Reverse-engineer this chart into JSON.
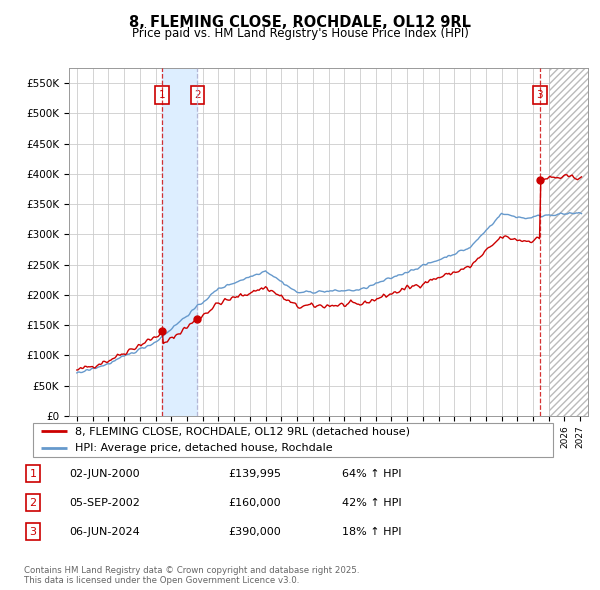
{
  "title": "8, FLEMING CLOSE, ROCHDALE, OL12 9RL",
  "subtitle": "Price paid vs. HM Land Registry's House Price Index (HPI)",
  "ylabel_ticks": [
    "£0",
    "£50K",
    "£100K",
    "£150K",
    "£200K",
    "£250K",
    "£300K",
    "£350K",
    "£400K",
    "£450K",
    "£500K",
    "£550K"
  ],
  "ytick_values": [
    0,
    50000,
    100000,
    150000,
    200000,
    250000,
    300000,
    350000,
    400000,
    450000,
    500000,
    550000
  ],
  "xlim": [
    1994.5,
    2027.5
  ],
  "ylim": [
    0,
    575000
  ],
  "sale1_date": 2000.42,
  "sale2_date": 2002.67,
  "sale3_date": 2024.42,
  "sale1_price": 139995,
  "sale2_price": 160000,
  "sale3_price": 390000,
  "sale1_label": "02-JUN-2000",
  "sale2_label": "05-SEP-2002",
  "sale3_label": "06-JUN-2024",
  "sale1_hpi": "64% ↑ HPI",
  "sale2_hpi": "42% ↑ HPI",
  "sale3_hpi": "18% ↑ HPI",
  "legend_line1": "8, FLEMING CLOSE, ROCHDALE, OL12 9RL (detached house)",
  "legend_line2": "HPI: Average price, detached house, Rochdale",
  "footer": "Contains HM Land Registry data © Crown copyright and database right 2025.\nThis data is licensed under the Open Government Licence v3.0.",
  "red_color": "#cc0000",
  "blue_color": "#6699cc",
  "bg_color": "#ffffff",
  "grid_color": "#cccccc",
  "hatch_color": "#bbbbbb",
  "shade_color": "#ddeeff",
  "sale2_line_color": "#aaaacc"
}
